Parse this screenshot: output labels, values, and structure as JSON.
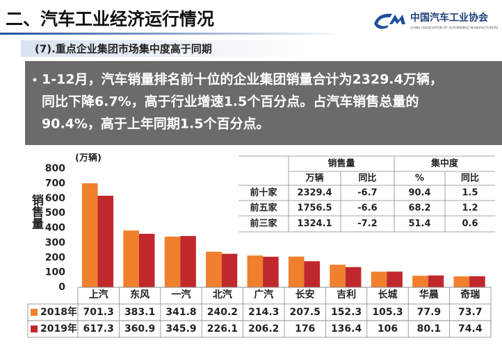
{
  "header": {
    "title": "二、汽车工业经济运行情况",
    "logo": "中国汽车工业协会",
    "logo_en": "CHINA ASSOCIATION OF AUTOMOBILE MANUFACTURERS"
  },
  "subtitle": "(7).重点企业集团市场集中度高于同期",
  "summary": [
    "1-12月，汽车销量排名前十位的企业集团销量合计为2329.4万辆，",
    "同比下降6.7%，高于行业增速1.5个百分点。占汽车销售总量的",
    "90.4%，高于上年同期1.5个百分点。"
  ],
  "chart_data": {
    "type": "bar",
    "unit_label": "(万辆)",
    "y_label": "销售量",
    "categories": [
      "上汽",
      "东风",
      "一汽",
      "北汽",
      "广汽",
      "长安",
      "吉利",
      "长城",
      "华晨",
      "奇瑞"
    ],
    "series": [
      {
        "name": "2018年",
        "color": "#f07f2e",
        "values": [
          701.3,
          383.1,
          341.8,
          240.2,
          214.3,
          207.5,
          152.3,
          105.3,
          77.9,
          73.7
        ]
      },
      {
        "name": "2019年",
        "color": "#c0282d",
        "values": [
          617.3,
          360.9,
          345.9,
          226.1,
          206.2,
          176.0,
          136.4,
          106.0,
          80.1,
          74.4
        ]
      }
    ],
    "ylim": [
      0,
      800
    ],
    "yticks": [
      0,
      100,
      200,
      300,
      400,
      500,
      600,
      700,
      800
    ]
  },
  "table": {
    "groups": [
      "销售量",
      "集中度"
    ],
    "columns": [
      "万辆",
      "同比",
      "%",
      "同比"
    ],
    "rows": [
      {
        "label": "前十家",
        "values": [
          2329.4,
          -6.7,
          90.4,
          1.5
        ]
      },
      {
        "label": "前五家",
        "values": [
          1756.5,
          -6.6,
          68.2,
          1.2
        ]
      },
      {
        "label": "前三家",
        "values": [
          1324.1,
          -7.2,
          51.4,
          0.6
        ]
      }
    ]
  }
}
